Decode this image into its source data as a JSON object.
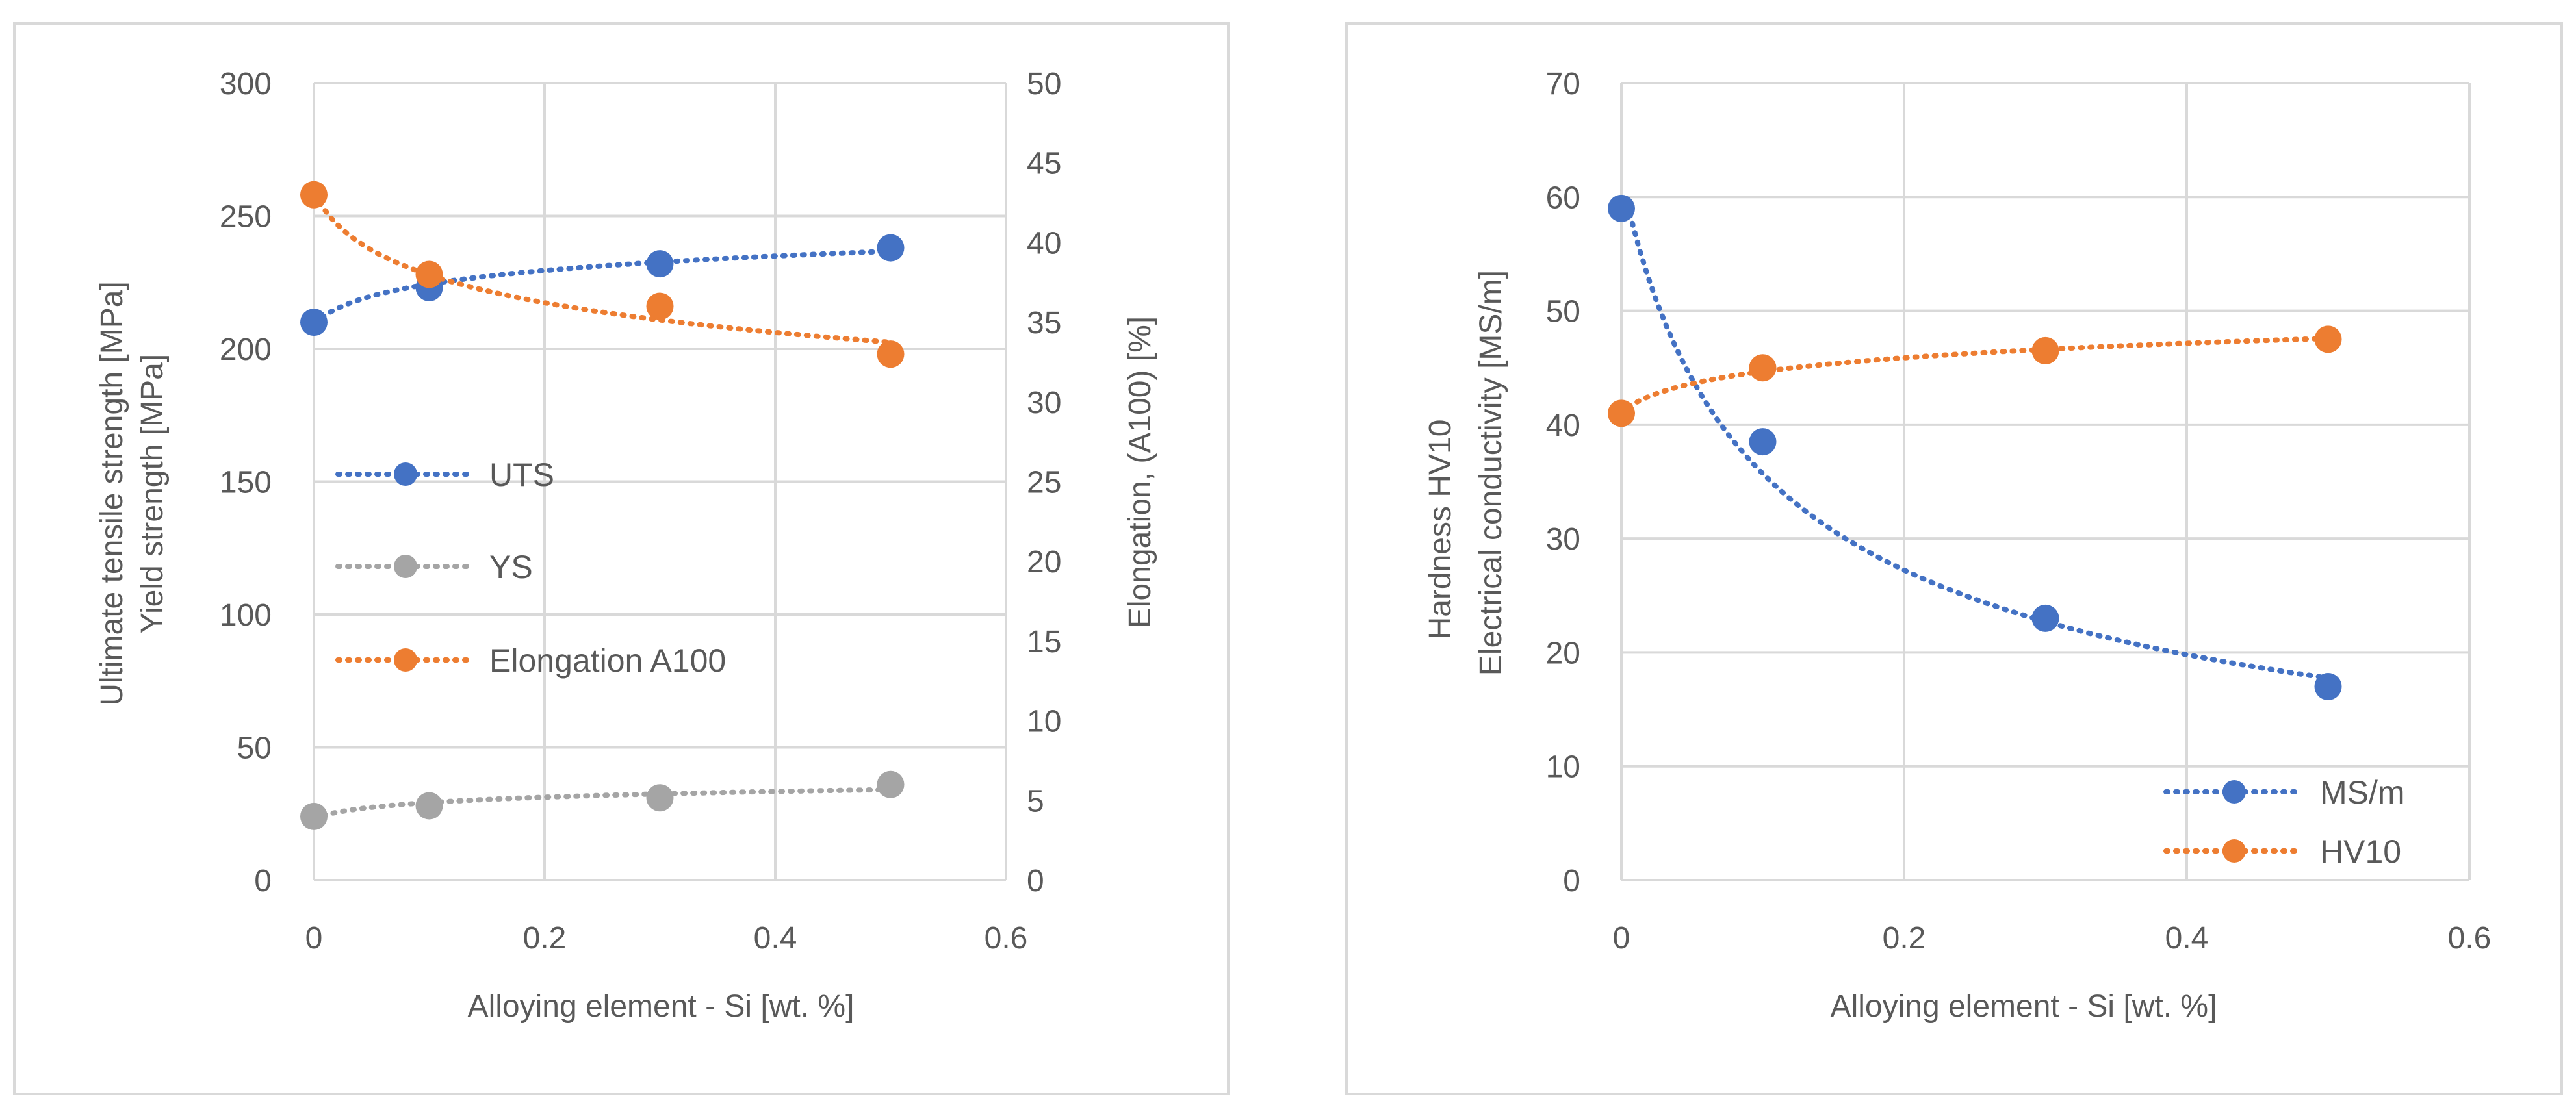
{
  "chart_data": [
    {
      "type": "scatter",
      "id": "left",
      "xlabel": "Alloying element - Si [wt. %]",
      "ylabel_lines": [
        "Ultimate tensile strength [MPa]",
        "Yield strength [MPa]"
      ],
      "y2label": "Elongation, (A100) [%]",
      "xlim": [
        0,
        0.6
      ],
      "ylim": [
        0,
        300
      ],
      "y2lim": [
        0,
        50
      ],
      "xticks": [
        "0",
        "0.2",
        "0.4",
        "0.6"
      ],
      "xtick_values": [
        0,
        0.2,
        0.4,
        0.6
      ],
      "yticks": [
        "0",
        "50",
        "100",
        "150",
        "200",
        "250",
        "300"
      ],
      "ytick_values": [
        0,
        50,
        100,
        150,
        200,
        250,
        300
      ],
      "y2ticks": [
        "0",
        "5",
        "10",
        "15",
        "20",
        "25",
        "30",
        "35",
        "40",
        "45",
        "50"
      ],
      "y2tick_values": [
        0,
        5,
        10,
        15,
        20,
        25,
        30,
        35,
        40,
        45,
        50
      ],
      "grid": true,
      "legend_position": "center-left",
      "series": [
        {
          "name": "UTS",
          "axis": "left",
          "color": "#4472C4",
          "x": [
            0,
            0.1,
            0.3,
            0.5
          ],
          "y": [
            210,
            223,
            232,
            238
          ]
        },
        {
          "name": "YS",
          "axis": "left",
          "color": "#A5A5A5",
          "x": [
            0,
            0.1,
            0.3,
            0.5
          ],
          "y": [
            24,
            28,
            31,
            36
          ]
        },
        {
          "name": "Elongation A100",
          "axis": "right",
          "color": "#ED7D31",
          "x": [
            0,
            0.1,
            0.3,
            0.5
          ],
          "y": [
            43,
            38,
            36,
            33
          ]
        }
      ]
    },
    {
      "type": "scatter",
      "id": "right",
      "xlabel": "Alloying element - Si [wt. %]",
      "ylabel_lines": [
        "Hardness HV10",
        "Electrical conductivity [MS/m]"
      ],
      "xlim": [
        0,
        0.6
      ],
      "ylim": [
        0,
        70
      ],
      "xticks": [
        "0",
        "0.2",
        "0.4",
        "0.6"
      ],
      "xtick_values": [
        0,
        0.2,
        0.4,
        0.6
      ],
      "yticks": [
        "0",
        "10",
        "20",
        "30",
        "40",
        "50",
        "60",
        "70"
      ],
      "ytick_values": [
        0,
        10,
        20,
        30,
        40,
        50,
        60,
        70
      ],
      "grid": true,
      "legend_position": "bottom-right",
      "series": [
        {
          "name": "MS/m",
          "axis": "left",
          "color": "#4472C4",
          "x": [
            0,
            0.1,
            0.3,
            0.5
          ],
          "y": [
            59,
            38.5,
            23,
            17
          ]
        },
        {
          "name": "HV10",
          "axis": "left",
          "color": "#ED7D31",
          "x": [
            0,
            0.1,
            0.3,
            0.5
          ],
          "y": [
            41,
            45,
            46.5,
            47.5
          ]
        }
      ]
    }
  ]
}
